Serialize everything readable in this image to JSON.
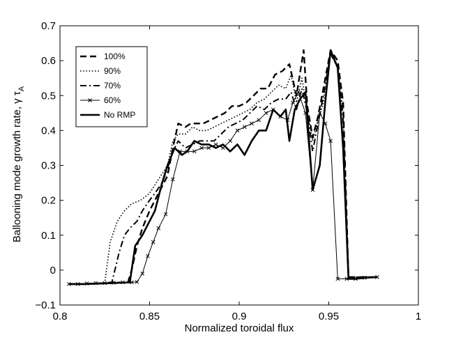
{
  "chart_data": {
    "type": "line",
    "title": "",
    "xlabel": "Normalized toroidal flux",
    "ylabel_main": "Ballooning mode growth rate, γ τ",
    "ylabel_sub": "A",
    "xlim": [
      0.8,
      1.0
    ],
    "ylim": [
      -0.1,
      0.7
    ],
    "xticks": [
      0.8,
      0.85,
      0.9,
      0.95,
      1.0
    ],
    "xtick_labels": [
      "0.8",
      "0.85",
      "0.9",
      "0.95",
      "1"
    ],
    "yticks": [
      -0.1,
      0,
      0.1,
      0.2,
      0.3,
      0.4,
      0.5,
      0.6,
      0.7
    ],
    "ytick_labels": [
      "−0.1",
      "0",
      "0.1",
      "0.2",
      "0.3",
      "0.4",
      "0.5",
      "0.6",
      "0.7"
    ],
    "grid": false,
    "legend_position": "top-left",
    "series": [
      {
        "name": "100%",
        "style": "dashed",
        "points": [
          [
            0.805,
            -0.04
          ],
          [
            0.815,
            -0.04
          ],
          [
            0.825,
            -0.037
          ],
          [
            0.83,
            -0.035
          ],
          [
            0.835,
            -0.036
          ],
          [
            0.838,
            -0.034
          ],
          [
            0.84,
            0.0
          ],
          [
            0.843,
            0.07
          ],
          [
            0.846,
            0.12
          ],
          [
            0.85,
            0.17
          ],
          [
            0.853,
            0.2
          ],
          [
            0.856,
            0.23
          ],
          [
            0.86,
            0.27
          ],
          [
            0.863,
            0.35
          ],
          [
            0.866,
            0.42
          ],
          [
            0.87,
            0.41
          ],
          [
            0.873,
            0.42
          ],
          [
            0.877,
            0.42
          ],
          [
            0.88,
            0.42
          ],
          [
            0.884,
            0.43
          ],
          [
            0.888,
            0.44
          ],
          [
            0.892,
            0.45
          ],
          [
            0.896,
            0.47
          ],
          [
            0.9,
            0.47
          ],
          [
            0.904,
            0.48
          ],
          [
            0.908,
            0.5
          ],
          [
            0.912,
            0.52
          ],
          [
            0.916,
            0.52
          ],
          [
            0.92,
            0.56
          ],
          [
            0.924,
            0.57
          ],
          [
            0.928,
            0.59
          ],
          [
            0.932,
            0.5
          ],
          [
            0.936,
            0.63
          ],
          [
            0.938,
            0.47
          ],
          [
            0.941,
            0.38
          ],
          [
            0.944,
            0.44
          ],
          [
            0.947,
            0.52
          ],
          [
            0.951,
            0.63
          ],
          [
            0.955,
            0.6
          ],
          [
            0.958,
            0.48
          ],
          [
            0.961,
            -0.02
          ],
          [
            0.965,
            -0.02
          ],
          [
            0.97,
            -0.02
          ],
          [
            0.977,
            -0.02
          ]
        ]
      },
      {
        "name": "90%",
        "style": "dotted",
        "points": [
          [
            0.805,
            -0.04
          ],
          [
            0.815,
            -0.04
          ],
          [
            0.825,
            -0.037
          ],
          [
            0.828,
            0.08
          ],
          [
            0.832,
            0.14
          ],
          [
            0.836,
            0.17
          ],
          [
            0.84,
            0.19
          ],
          [
            0.845,
            0.2
          ],
          [
            0.85,
            0.22
          ],
          [
            0.855,
            0.26
          ],
          [
            0.86,
            0.3
          ],
          [
            0.863,
            0.37
          ],
          [
            0.866,
            0.39
          ],
          [
            0.87,
            0.39
          ],
          [
            0.874,
            0.41
          ],
          [
            0.878,
            0.4
          ],
          [
            0.882,
            0.4
          ],
          [
            0.886,
            0.41
          ],
          [
            0.89,
            0.42
          ],
          [
            0.894,
            0.43
          ],
          [
            0.898,
            0.44
          ],
          [
            0.902,
            0.45
          ],
          [
            0.906,
            0.46
          ],
          [
            0.91,
            0.48
          ],
          [
            0.914,
            0.49
          ],
          [
            0.918,
            0.51
          ],
          [
            0.922,
            0.53
          ],
          [
            0.926,
            0.52
          ],
          [
            0.929,
            0.56
          ],
          [
            0.932,
            0.48
          ],
          [
            0.935,
            0.55
          ],
          [
            0.938,
            0.46
          ],
          [
            0.941,
            0.37
          ],
          [
            0.944,
            0.43
          ],
          [
            0.947,
            0.48
          ],
          [
            0.951,
            0.62
          ],
          [
            0.955,
            0.58
          ],
          [
            0.958,
            0.45
          ],
          [
            0.961,
            -0.02
          ],
          [
            0.965,
            -0.02
          ],
          [
            0.97,
            -0.02
          ],
          [
            0.977,
            -0.02
          ]
        ]
      },
      {
        "name": "70%",
        "style": "dashdot",
        "points": [
          [
            0.805,
            -0.04
          ],
          [
            0.815,
            -0.04
          ],
          [
            0.825,
            -0.037
          ],
          [
            0.829,
            -0.035
          ],
          [
            0.833,
            0.05
          ],
          [
            0.836,
            0.1
          ],
          [
            0.839,
            0.12
          ],
          [
            0.843,
            0.14
          ],
          [
            0.846,
            0.17
          ],
          [
            0.85,
            0.2
          ],
          [
            0.853,
            0.22
          ],
          [
            0.857,
            0.25
          ],
          [
            0.86,
            0.29
          ],
          [
            0.863,
            0.34
          ],
          [
            0.866,
            0.37
          ],
          [
            0.87,
            0.35
          ],
          [
            0.874,
            0.36
          ],
          [
            0.878,
            0.37
          ],
          [
            0.882,
            0.37
          ],
          [
            0.886,
            0.37
          ],
          [
            0.89,
            0.39
          ],
          [
            0.894,
            0.41
          ],
          [
            0.898,
            0.42
          ],
          [
            0.902,
            0.43
          ],
          [
            0.906,
            0.45
          ],
          [
            0.91,
            0.47
          ],
          [
            0.914,
            0.46
          ],
          [
            0.918,
            0.48
          ],
          [
            0.922,
            0.49
          ],
          [
            0.926,
            0.49
          ],
          [
            0.929,
            0.51
          ],
          [
            0.932,
            0.46
          ],
          [
            0.935,
            0.52
          ],
          [
            0.938,
            0.45
          ],
          [
            0.941,
            0.34
          ],
          [
            0.944,
            0.42
          ],
          [
            0.947,
            0.5
          ],
          [
            0.951,
            0.62
          ],
          [
            0.955,
            0.58
          ],
          [
            0.958,
            0.43
          ],
          [
            0.961,
            -0.02
          ],
          [
            0.965,
            -0.02
          ],
          [
            0.97,
            -0.02
          ],
          [
            0.977,
            -0.02
          ]
        ]
      },
      {
        "name": "60%",
        "style": "solid-thin-x",
        "points": [
          [
            0.805,
            -0.04
          ],
          [
            0.81,
            -0.04
          ],
          [
            0.815,
            -0.038
          ],
          [
            0.82,
            -0.037
          ],
          [
            0.825,
            -0.037
          ],
          [
            0.83,
            -0.036
          ],
          [
            0.835,
            -0.035
          ],
          [
            0.84,
            -0.035
          ],
          [
            0.843,
            -0.034
          ],
          [
            0.846,
            -0.01
          ],
          [
            0.849,
            0.04
          ],
          [
            0.852,
            0.08
          ],
          [
            0.855,
            0.12
          ],
          [
            0.859,
            0.16
          ],
          [
            0.863,
            0.26
          ],
          [
            0.867,
            0.34
          ],
          [
            0.871,
            0.34
          ],
          [
            0.875,
            0.34
          ],
          [
            0.879,
            0.35
          ],
          [
            0.883,
            0.35
          ],
          [
            0.887,
            0.36
          ],
          [
            0.891,
            0.35
          ],
          [
            0.895,
            0.37
          ],
          [
            0.899,
            0.4
          ],
          [
            0.903,
            0.41
          ],
          [
            0.907,
            0.42
          ],
          [
            0.911,
            0.43
          ],
          [
            0.915,
            0.45
          ],
          [
            0.919,
            0.46
          ],
          [
            0.923,
            0.44
          ],
          [
            0.927,
            0.43
          ],
          [
            0.93,
            0.48
          ],
          [
            0.933,
            0.51
          ],
          [
            0.937,
            0.45
          ],
          [
            0.941,
            0.23
          ],
          [
            0.945,
            0.45
          ],
          [
            0.948,
            0.42
          ],
          [
            0.951,
            0.37
          ],
          [
            0.955,
            -0.025
          ],
          [
            0.96,
            -0.025
          ],
          [
            0.965,
            -0.025
          ],
          [
            0.97,
            -0.022
          ],
          [
            0.977,
            -0.02
          ]
        ]
      },
      {
        "name": "No RMP",
        "style": "solid-thick",
        "points": [
          [
            0.805,
            -0.04
          ],
          [
            0.815,
            -0.04
          ],
          [
            0.825,
            -0.038
          ],
          [
            0.83,
            -0.037
          ],
          [
            0.835,
            -0.036
          ],
          [
            0.839,
            -0.035
          ],
          [
            0.842,
            0.07
          ],
          [
            0.846,
            0.1
          ],
          [
            0.849,
            0.13
          ],
          [
            0.853,
            0.17
          ],
          [
            0.857,
            0.25
          ],
          [
            0.86,
            0.3
          ],
          [
            0.864,
            0.35
          ],
          [
            0.868,
            0.33
          ],
          [
            0.871,
            0.34
          ],
          [
            0.875,
            0.37
          ],
          [
            0.879,
            0.36
          ],
          [
            0.883,
            0.36
          ],
          [
            0.887,
            0.35
          ],
          [
            0.891,
            0.36
          ],
          [
            0.895,
            0.34
          ],
          [
            0.899,
            0.36
          ],
          [
            0.903,
            0.33
          ],
          [
            0.907,
            0.37
          ],
          [
            0.911,
            0.4
          ],
          [
            0.915,
            0.4
          ],
          [
            0.919,
            0.46
          ],
          [
            0.923,
            0.44
          ],
          [
            0.926,
            0.46
          ],
          [
            0.928,
            0.37
          ],
          [
            0.931,
            0.46
          ],
          [
            0.934,
            0.49
          ],
          [
            0.937,
            0.51
          ],
          [
            0.941,
            0.23
          ],
          [
            0.945,
            0.3
          ],
          [
            0.948,
            0.48
          ],
          [
            0.951,
            0.63
          ],
          [
            0.955,
            0.58
          ],
          [
            0.958,
            0.35
          ],
          [
            0.961,
            -0.025
          ],
          [
            0.965,
            -0.025
          ],
          [
            0.97,
            -0.022
          ],
          [
            0.977,
            -0.02
          ]
        ]
      }
    ]
  }
}
